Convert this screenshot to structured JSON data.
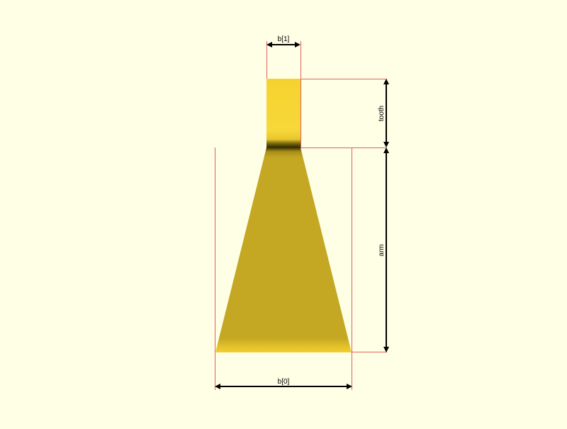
{
  "viewport": {
    "background": "#ffffe5"
  },
  "colors": {
    "helper_line": "#e06060",
    "dimension_line": "#000000",
    "tooth_fill": "#f7d632",
    "arm_fill": "#c4a722",
    "edge_shade": "#3a3000"
  },
  "dimensions": {
    "b1": "b[1]",
    "tooth": "tooth",
    "arm": "arm",
    "b0": "b[0]"
  }
}
